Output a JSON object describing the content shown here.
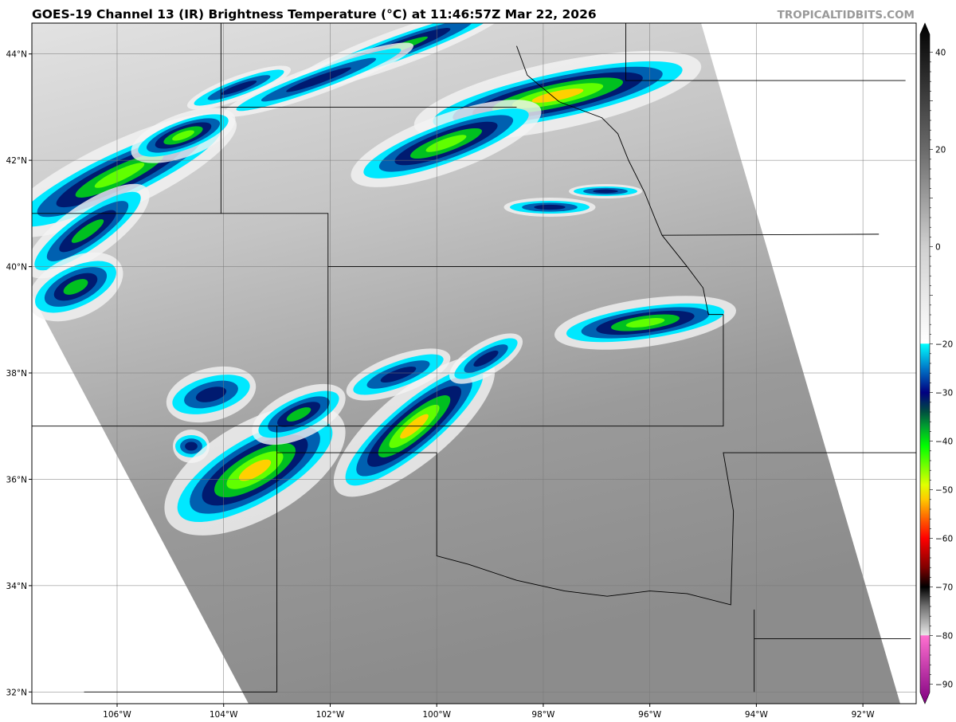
{
  "title": "GOES-19 Channel 13 (IR) Brightness Temperature (°C) at 11:46:57Z Mar 22, 2026",
  "brand": "TROPICALTIDBITS.COM",
  "map": {
    "lon_range": [
      -107.6,
      -91.0
    ],
    "lat_range": [
      31.78,
      44.58
    ],
    "lon_ticks": [
      {
        "v": -106,
        "label": "106°W"
      },
      {
        "v": -104,
        "label": "104°W"
      },
      {
        "v": -102,
        "label": "102°W"
      },
      {
        "v": -100,
        "label": "100°W"
      },
      {
        "v": -98,
        "label": "98°W"
      },
      {
        "v": -96,
        "label": "96°W"
      },
      {
        "v": -94,
        "label": "94°W"
      },
      {
        "v": -92,
        "label": "92°W"
      }
    ],
    "lat_ticks": [
      {
        "v": 44,
        "label": "44°N"
      },
      {
        "v": 42,
        "label": "42°N"
      },
      {
        "v": 40,
        "label": "40°N"
      },
      {
        "v": 38,
        "label": "38°N"
      },
      {
        "v": 36,
        "label": "36°N"
      },
      {
        "v": 34,
        "label": "34°N"
      },
      {
        "v": 32,
        "label": "32°N"
      }
    ],
    "grid": true
  },
  "colorbar": {
    "range": [
      -94,
      46
    ],
    "ticks": [
      {
        "v": 40,
        "label": "40"
      },
      {
        "v": 20,
        "label": "20"
      },
      {
        "v": 0,
        "label": "0"
      },
      {
        "v": -20,
        "label": "−20"
      },
      {
        "v": -30,
        "label": "−30"
      },
      {
        "v": -40,
        "label": "−40"
      },
      {
        "v": -50,
        "label": "−50"
      },
      {
        "v": -60,
        "label": "−60"
      },
      {
        "v": -70,
        "label": "−70"
      },
      {
        "v": -80,
        "label": "−80"
      },
      {
        "v": -90,
        "label": "−90"
      }
    ],
    "stops": [
      {
        "t": 46,
        "c": "#000000"
      },
      {
        "t": 20,
        "c": "#6a6a6a"
      },
      {
        "t": 0,
        "c": "#d0d0d0"
      },
      {
        "t": -19.9,
        "c": "#ffffff"
      },
      {
        "t": -20,
        "c": "#00ffff"
      },
      {
        "t": -25,
        "c": "#0078c8"
      },
      {
        "t": -30,
        "c": "#000080"
      },
      {
        "t": -34,
        "c": "#005040"
      },
      {
        "t": -37,
        "c": "#00a030"
      },
      {
        "t": -41,
        "c": "#00ff00"
      },
      {
        "t": -49,
        "c": "#e0ff00"
      },
      {
        "t": -52,
        "c": "#ffc800"
      },
      {
        "t": -56,
        "c": "#ff6000"
      },
      {
        "t": -60,
        "c": "#ff0000"
      },
      {
        "t": -66,
        "c": "#800000"
      },
      {
        "t": -70,
        "c": "#000000"
      },
      {
        "t": -74,
        "c": "#707070"
      },
      {
        "t": -79.9,
        "c": "#e8e8e8"
      },
      {
        "t": -80,
        "c": "#ff70d0"
      },
      {
        "t": -94,
        "c": "#800080"
      }
    ]
  }
}
